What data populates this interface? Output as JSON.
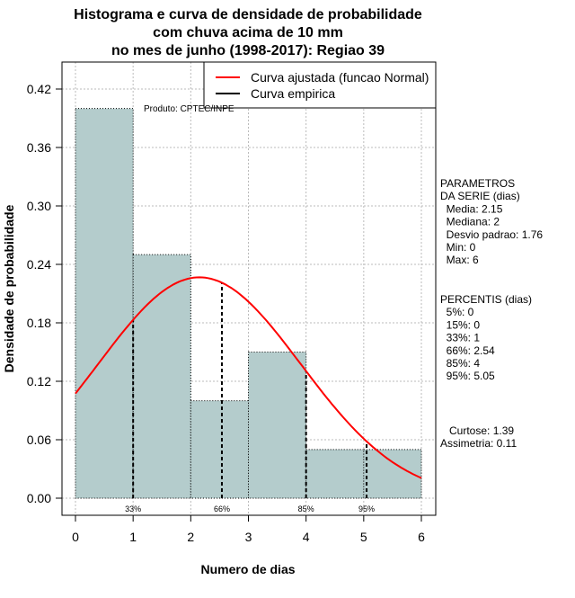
{
  "chart_data": {
    "type": "bar",
    "title": [
      "Histograma e curva de densidade de probabilidade",
      "com chuva acima de 10 mm",
      "no mes de junho (1998-2017): Regiao 39"
    ],
    "xlabel": "Numero de dias",
    "ylabel": "Densidade de probabilidade",
    "xlim": [
      0,
      6
    ],
    "ylim": [
      0,
      0.42
    ],
    "xticks": [
      "0",
      "1",
      "2",
      "3",
      "4",
      "5",
      "6"
    ],
    "yticks": [
      "0.00",
      "0.06",
      "0.12",
      "0.18",
      "0.24",
      "0.30",
      "0.36",
      "0.42"
    ],
    "bins": [
      [
        0,
        1
      ],
      [
        1,
        2
      ],
      [
        2,
        3
      ],
      [
        3,
        4
      ],
      [
        4,
        5
      ],
      [
        5,
        6
      ]
    ],
    "values": [
      0.4,
      0.25,
      0.1,
      0.15,
      0.05,
      0.05
    ],
    "normal_fit": {
      "mean": 2.15,
      "sd": 1.76
    },
    "percentile_lines": [
      {
        "x": 1,
        "label": "33%"
      },
      {
        "x": 2.54,
        "label": "66%"
      },
      {
        "x": 4,
        "label": "85%"
      },
      {
        "x": 5.05,
        "label": "95%"
      }
    ],
    "legend": [
      "Curva ajustada (funcao Normal)",
      "Curva empirica"
    ],
    "legend_position": "top-right",
    "annotation": "Produto: CPTEC/INPE",
    "grid": true,
    "colors": {
      "bar": "#b4cccc",
      "normal": "#ff0000",
      "empirical": "#000000"
    }
  },
  "side_panel": {
    "params": [
      "PARAMETROS",
      "DA SERIE (dias)",
      "  Media: 2.15",
      "  Mediana: 2",
      "  Desvio padrao: 1.76",
      "  Min: 0",
      "  Max: 6"
    ],
    "percentis": [
      "PERCENTIS (dias)",
      "  5%: 0",
      "  15%: 0",
      "  33%: 1",
      "  66%: 2.54",
      "  85%: 4",
      "  95%: 5.05"
    ],
    "stats": [
      "   Curtose: 1.39",
      "Assimetria: 0.11"
    ]
  }
}
